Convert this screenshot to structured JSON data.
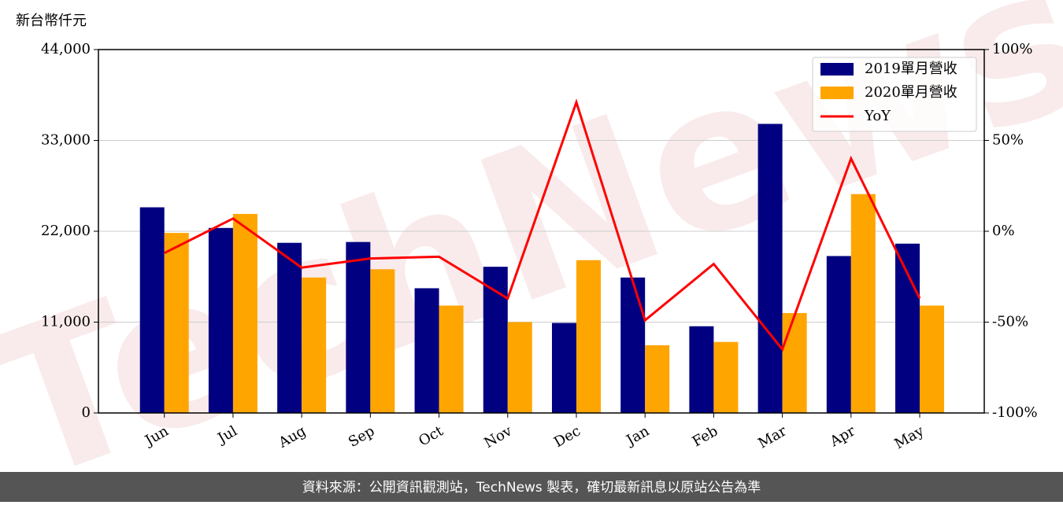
{
  "chart_data": {
    "type": "bar_line",
    "y_label": "新台幣仟元",
    "categories": [
      "Jun",
      "Jul",
      "Aug",
      "Sep",
      "Oct",
      "Nov",
      "Dec",
      "Jan",
      "Feb",
      "Mar",
      "Apr",
      "May"
    ],
    "series": [
      {
        "name": "2019單月營收",
        "color": "#000080",
        "values": [
          24900,
          22400,
          20600,
          20700,
          15100,
          17700,
          10900,
          16400,
          10500,
          35000,
          19000,
          20500
        ]
      },
      {
        "name": "2020單月營收",
        "color": "#ffa500",
        "values": [
          21800,
          24100,
          16400,
          17400,
          13000,
          11000,
          18500,
          8200,
          8600,
          12100,
          26500,
          13000
        ]
      },
      {
        "name": "YoY",
        "color": "#ff0000",
        "axis": "y2",
        "values": [
          -12,
          7,
          -20,
          -15,
          -14,
          -37,
          71,
          -49,
          -18,
          -65,
          40,
          -37
        ]
      }
    ],
    "ylim": [
      0,
      44000
    ],
    "yticks": [
      0,
      {
        "value": 11000,
        "label": "11,000"
      },
      {
        "value": 22000,
        "label": "22,000"
      },
      {
        "value": 33000,
        "label": "33,000"
      },
      {
        "value": 44000,
        "label": "44,000"
      }
    ],
    "y2lim": [
      -100,
      100
    ],
    "y2ticks": [
      {
        "value": -100,
        "label": "-100%"
      },
      {
        "value": -50,
        "label": "-50%"
      },
      {
        "value": 0,
        "label": "0%"
      },
      {
        "value": 50,
        "label": "50%"
      },
      {
        "value": 100,
        "label": "100%"
      }
    ],
    "grid": true,
    "legend": "upper right",
    "watermark": "TechNews",
    "footer": "資料來源：公開資訊觀測站，TechNews 製表，確切最新訊息以原站公告為準"
  }
}
